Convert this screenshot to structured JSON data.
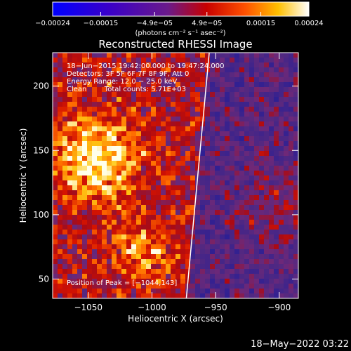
{
  "chart_data": {
    "type": "heatmap",
    "title": "Reconstructed RHESSI Image",
    "xlabel": "Heliocentric X (arcsec)",
    "ylabel": "Heliocentric Y (arcsec)",
    "xlim": [
      -1078,
      -885
    ],
    "ylim": [
      35,
      226
    ],
    "x_ticks": [
      -1050,
      -1000,
      -950,
      -900
    ],
    "x_tick_labels": [
      "−1050",
      "−1000",
      "−950",
      "−900"
    ],
    "y_ticks": [
      50,
      100,
      150,
      200
    ],
    "y_tick_labels": [
      "50",
      "100",
      "150",
      "200"
    ],
    "colorbar": {
      "range": [
        -0.00024,
        0.00024
      ],
      "tick_values": [
        -0.00024,
        -0.00015,
        -4.9e-05,
        4.9e-05,
        0.00015,
        0.00024
      ],
      "tick_labels": [
        "−0.00024",
        "−0.00015",
        "−4.9e−05",
        "4.9e−05",
        "0.00015",
        "0.00024"
      ],
      "units_label": "(photons cm⁻² s⁻¹ asec⁻²)"
    },
    "annotations": [
      "18−Jun−2015 19:42:00.000 to 19:47:24.000",
      "Detectors: 3F 5F 6F 7F 8F 9F, Att 0",
      "Energy Range: 12.0 − 25.0 keV",
      "Clean        Total counts: 5.71E+03"
    ],
    "peak_label": "Position of Peak = [−1044,143]",
    "peak": [
      -1044,
      143
    ],
    "limb_line": [
      [
        -973,
        35
      ],
      [
        -955,
        226
      ]
    ],
    "grid": false,
    "colors": {
      "background": "#000000",
      "foreground": "#ffffff",
      "colormap": [
        "#0000ff",
        "#800080",
        "#6a2a8a",
        "#c00000",
        "#ff3000",
        "#ff8000",
        "#ffd000",
        "#ffffff"
      ]
    }
  },
  "footer": {
    "timestamp": "18−May−2022 03:22"
  }
}
